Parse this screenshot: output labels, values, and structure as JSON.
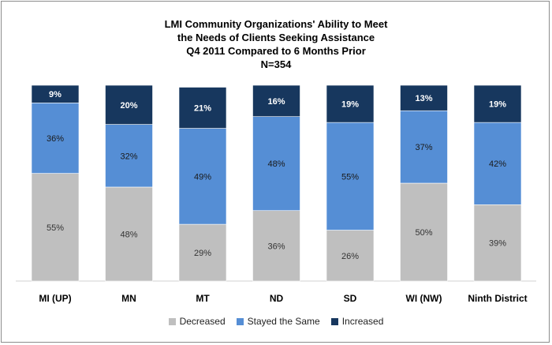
{
  "chart_data": {
    "type": "bar",
    "stacked": true,
    "title_lines": [
      "LMI Community Organizations'  Ability to Meet",
      "the Needs of Clients Seeking Assistance",
      "Q4 2011 Compared to 6 Months Prior",
      "N=354"
    ],
    "categories": [
      "MI (UP)",
      "MN",
      "MT",
      "ND",
      "SD",
      "WI (NW)",
      "Ninth District"
    ],
    "series": [
      {
        "name": "Decreased",
        "values": [
          55,
          48,
          29,
          36,
          26,
          50,
          39
        ],
        "labels": [
          "55%",
          "48%",
          "29%",
          "36%",
          "26%",
          "50%",
          "39%"
        ],
        "color": "#bfbfbf",
        "label_color": "#333333"
      },
      {
        "name": "Stayed the Same",
        "values": [
          36,
          32,
          49,
          48,
          55,
          37,
          42
        ],
        "labels": [
          "36%",
          "32%",
          "49%",
          "48%",
          "55%",
          "37%",
          "42%"
        ],
        "color": "#558ed5",
        "label_color": "#1a1a1a"
      },
      {
        "name": "Increased",
        "values": [
          9,
          20,
          21,
          16,
          19,
          13,
          19
        ],
        "labels": [
          "9%",
          "20%",
          "21%",
          "16%",
          "19%",
          "13%",
          "19%"
        ],
        "color": "#17375e",
        "label_color": "#ffffff"
      }
    ],
    "ylim": [
      0,
      100
    ],
    "legend_position": "bottom"
  }
}
